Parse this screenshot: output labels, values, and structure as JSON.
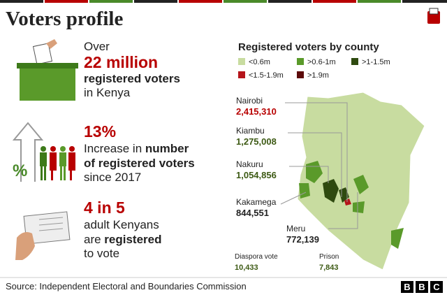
{
  "header": {
    "title": "Voters profile"
  },
  "stats": [
    {
      "lines": [
        [
          "Over"
        ],
        [
          "22 million"
        ],
        [
          "registered voters"
        ],
        [
          "in Kenya"
        ]
      ]
    },
    {
      "lines": [
        [
          "13%"
        ],
        [
          "Increase in ",
          "number"
        ],
        [
          "of registered voters"
        ],
        [
          "since 2017"
        ]
      ]
    },
    {
      "lines": [
        [
          "4 in 5"
        ],
        [
          "adult Kenyans"
        ],
        [
          "are ",
          "registered"
        ],
        [
          "to vote"
        ]
      ]
    }
  ],
  "map": {
    "title": "Registered voters by county",
    "legend": [
      {
        "label": "<0.6m",
        "color": "#c8dca0"
      },
      {
        "label": ">0.6-1m",
        "color": "#5a9a2a"
      },
      {
        "label": ">1-1.5m",
        "color": "#2f4a10"
      },
      {
        "label": "<1.5-1.9m",
        "color": "#b5151b"
      },
      {
        "label": ">1.9m",
        "color": "#5c0a0a"
      }
    ],
    "labels": [
      {
        "name": "Nairobi",
        "value": "2,415,310"
      },
      {
        "name": "Kiambu",
        "value": "1,275,008"
      },
      {
        "name": "Nakuru",
        "value": "1,054,856"
      },
      {
        "name": "Kakamega",
        "value": "844,551"
      },
      {
        "name": "Meru",
        "value": "772,139"
      },
      {
        "name": "Diaspora vote",
        "value": "10,433"
      },
      {
        "name": "Prison",
        "value": "7,843"
      }
    ]
  },
  "footer": {
    "source": "Source: Independent Electoral and Boundaries Commission",
    "logo": [
      "B",
      "B",
      "C"
    ]
  }
}
